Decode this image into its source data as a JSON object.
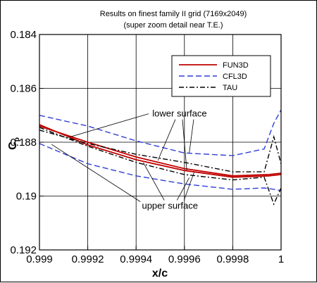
{
  "chart_data": {
    "type": "line",
    "title": "Results on finest family II grid (7169x2049)",
    "subtitle": "(super zoom detail near T.E.)",
    "xlabel": "x/c",
    "ylabel": "C",
    "ylabel_sub": "p",
    "xlim": [
      0.999,
      1.0
    ],
    "ylim": [
      0.192,
      0.184
    ],
    "y_reversed": true,
    "grid": true,
    "x_ticks": [
      0.999,
      0.9992,
      0.9994,
      0.9996,
      0.9998,
      1.0
    ],
    "x_tick_labels": [
      "0.999",
      "0.9992",
      "0.9994",
      "0.9996",
      "0.9998",
      "1"
    ],
    "y_ticks": [
      0.184,
      0.186,
      0.188,
      0.19,
      0.192
    ],
    "y_tick_labels": [
      "0.184",
      "0.186",
      "0.188",
      "0.19",
      "0.192"
    ],
    "legend": {
      "placement": "top-right",
      "entries": [
        {
          "name": "FUN3D",
          "color": "#c00000",
          "style": "solid"
        },
        {
          "name": "CFL3D",
          "color": "#2f3fd6",
          "style": "dashed"
        },
        {
          "name": "TAU",
          "color": "#000000",
          "style": "dashdot"
        }
      ]
    },
    "annotations": [
      {
        "text": "lower surface",
        "x": 0.99958,
        "y": 0.18705
      },
      {
        "text": "upper surface",
        "x": 0.99954,
        "y": 0.19047
      }
    ],
    "series": [
      {
        "name": "FUN3D",
        "surface": "lower",
        "x": [
          0.999,
          0.9992,
          0.9994,
          0.9996,
          0.9998,
          0.99995,
          1.0
        ],
        "y": [
          0.1874,
          0.188,
          0.18855,
          0.18898,
          0.18925,
          0.1892,
          0.18915
        ]
      },
      {
        "name": "FUN3D",
        "surface": "upper",
        "x": [
          0.999,
          0.9992,
          0.9994,
          0.9996,
          0.9998,
          0.99995,
          1.0
        ],
        "y": [
          0.18735,
          0.1881,
          0.18865,
          0.18905,
          0.1893,
          0.18925,
          0.1892
        ]
      },
      {
        "name": "CFL3D",
        "surface": "lower",
        "x": [
          0.999,
          0.9992,
          0.9994,
          0.9996,
          0.9998,
          0.99993,
          0.99997,
          1.0
        ],
        "y": [
          0.187,
          0.1874,
          0.18795,
          0.1884,
          0.1885,
          0.18825,
          0.1873,
          0.1868
        ]
      },
      {
        "name": "CFL3D",
        "surface": "upper",
        "x": [
          0.999,
          0.9992,
          0.9994,
          0.9996,
          0.9998,
          0.99993,
          0.99997,
          1.0
        ],
        "y": [
          0.18805,
          0.1888,
          0.18925,
          0.18955,
          0.18975,
          0.1897,
          0.18975,
          0.1898
        ]
      },
      {
        "name": "TAU",
        "surface": "lower",
        "x": [
          0.999,
          0.9992,
          0.9994,
          0.9996,
          0.9998,
          0.99993,
          0.99997,
          1.0
        ],
        "y": [
          0.18755,
          0.18805,
          0.18845,
          0.18875,
          0.1891,
          0.1891,
          0.1878,
          0.1888
        ]
      },
      {
        "name": "TAU",
        "surface": "upper",
        "x": [
          0.999,
          0.9992,
          0.9994,
          0.9996,
          0.9998,
          0.99993,
          0.99997,
          1.0
        ],
        "y": [
          0.18745,
          0.18815,
          0.18875,
          0.1892,
          0.1894,
          0.1893,
          0.1903,
          0.1897
        ]
      }
    ]
  }
}
